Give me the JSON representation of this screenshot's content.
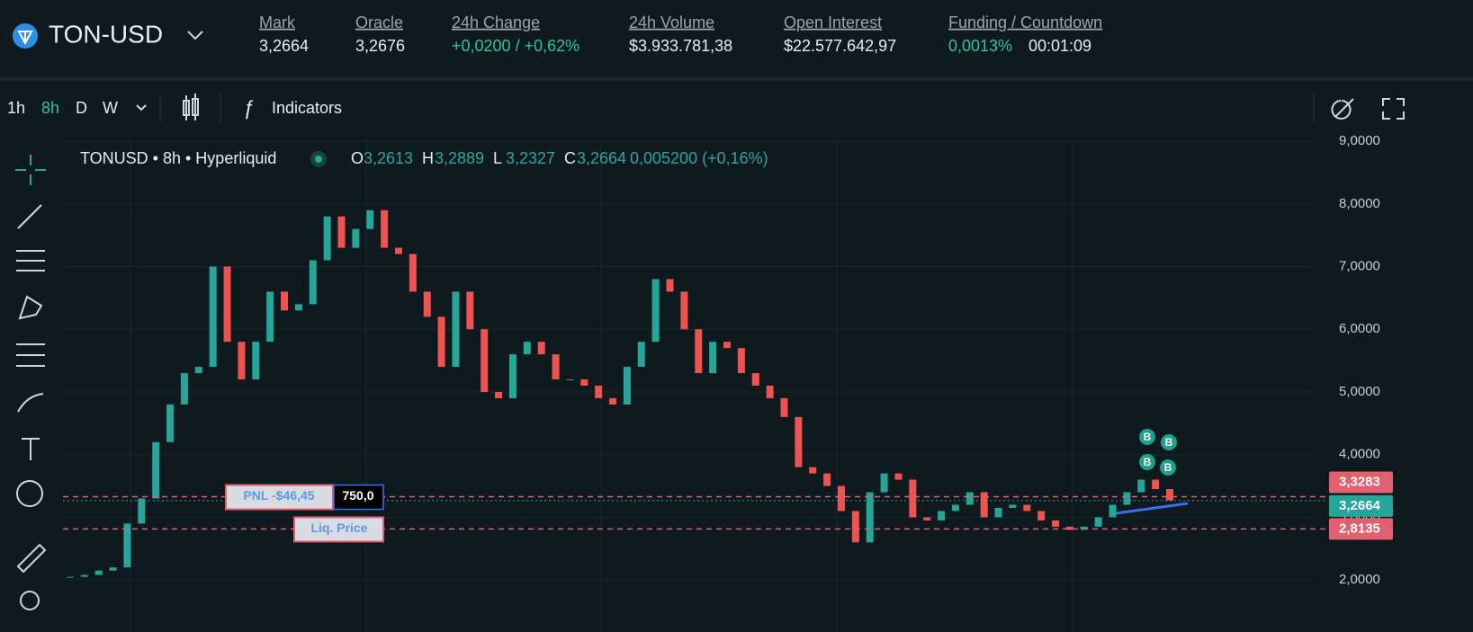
{
  "header": {
    "symbol": "TON-USD",
    "stats": [
      {
        "label": "Mark",
        "value": "3,2664"
      },
      {
        "label": "Oracle",
        "value": "3,2676"
      },
      {
        "label": "24h Change",
        "value": "+0,0200 / +0,62%"
      },
      {
        "label": "24h Volume",
        "value": "$3.933.781,38"
      },
      {
        "label": "Open Interest",
        "value": "$22.577.642,97"
      },
      {
        "label": "Funding / Countdown",
        "value": "0,0013%",
        "value2": "00:01:09"
      }
    ]
  },
  "toolbar": {
    "intervals": [
      "1h",
      "8h",
      "D",
      "W"
    ],
    "indicators": "Indicators"
  },
  "legend": {
    "title": "TONUSD • 8h • Hyperliquid",
    "open_label": "O",
    "open": "3,2613",
    "high_label": "H",
    "high": "3,2889",
    "low_label": "L",
    "low": "3,2327",
    "close_label": "C",
    "close": "3,2664",
    "change": "0,005200 (+0,16%)"
  },
  "chart": {
    "type": "candlestick",
    "ylim": [
      1.17,
      9.03
    ],
    "yticks": [
      {
        "value": 2,
        "label": "2,0000"
      },
      {
        "value": 3,
        "label": "3,0000"
      },
      {
        "value": 4,
        "label": "4,0000"
      },
      {
        "value": 5,
        "label": "5,0000"
      },
      {
        "value": 6,
        "label": "6,0000"
      },
      {
        "value": 7,
        "label": "7,0000"
      },
      {
        "value": 8,
        "label": "8,0000"
      },
      {
        "value": 9,
        "label": "9,0000"
      }
    ],
    "values": [
      2.05,
      2.08,
      2.15,
      2.2,
      2.9,
      3.3,
      4.2,
      4.8,
      5.3,
      5.4,
      7.0,
      5.8,
      5.2,
      5.8,
      6.6,
      6.3,
      6.4,
      7.1,
      7.8,
      7.3,
      7.6,
      7.9,
      7.3,
      7.2,
      6.6,
      6.2,
      5.4,
      6.6,
      6.0,
      5.0,
      4.9,
      5.6,
      5.8,
      5.6,
      5.2,
      5.2,
      5.1,
      4.9,
      4.8,
      5.4,
      5.8,
      6.8,
      6.6,
      6.0,
      5.3,
      5.8,
      5.7,
      5.3,
      5.1,
      4.9,
      4.6,
      3.8,
      3.7,
      3.5,
      3.1,
      2.6,
      3.4,
      3.7,
      3.6,
      3.0,
      2.95,
      3.1,
      3.2,
      3.4,
      3.0,
      3.15,
      3.2,
      3.1,
      2.95,
      2.85,
      2.8,
      2.85,
      3.0,
      3.2,
      3.4,
      3.6,
      3.45,
      3.27
    ],
    "levels": [
      {
        "value": 3.3283,
        "label": "3,3283"
      },
      {
        "value": 3.2664,
        "label": "3,2664"
      },
      {
        "value": 2.8135,
        "label": "2,8135"
      }
    ],
    "pnl": "PNL -$46,45",
    "size": "750,0",
    "liq": "Liq. Price",
    "markers": [
      "B",
      "B",
      "B",
      "B"
    ]
  }
}
